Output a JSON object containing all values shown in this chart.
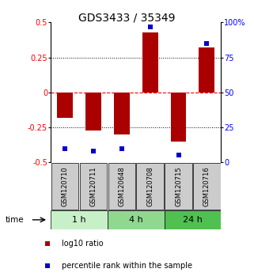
{
  "title": "GDS3433 / 35349",
  "samples": [
    "GSM120710",
    "GSM120711",
    "GSM120648",
    "GSM120708",
    "GSM120715",
    "GSM120716"
  ],
  "log10_ratio": [
    -0.18,
    -0.27,
    -0.3,
    0.43,
    -0.35,
    0.32
  ],
  "percentile_rank": [
    10,
    8,
    10,
    97,
    5,
    85
  ],
  "time_groups": [
    {
      "label": "1 h",
      "start": 0,
      "end": 2,
      "color": "#c8f0c8"
    },
    {
      "label": "4 h",
      "start": 2,
      "end": 4,
      "color": "#90d890"
    },
    {
      "label": "24 h",
      "start": 4,
      "end": 6,
      "color": "#50c050"
    }
  ],
  "bar_color": "#aa0000",
  "dot_color": "#0000cc",
  "ylim": [
    -0.5,
    0.5
  ],
  "y2lim": [
    0,
    100
  ],
  "yticks": [
    -0.5,
    -0.25,
    0,
    0.25,
    0.5
  ],
  "y2ticks": [
    0,
    25,
    50,
    75,
    100
  ],
  "hline_positions": [
    -0.25,
    0,
    0.25
  ],
  "hline_styles": [
    "dotted",
    "dashed",
    "dotted"
  ],
  "hline_colors": [
    "black",
    "red",
    "black"
  ],
  "sample_box_color": "#cccccc",
  "background_color": "#ffffff",
  "title_fontsize": 10,
  "tick_fontsize": 7,
  "label_fontsize": 7
}
